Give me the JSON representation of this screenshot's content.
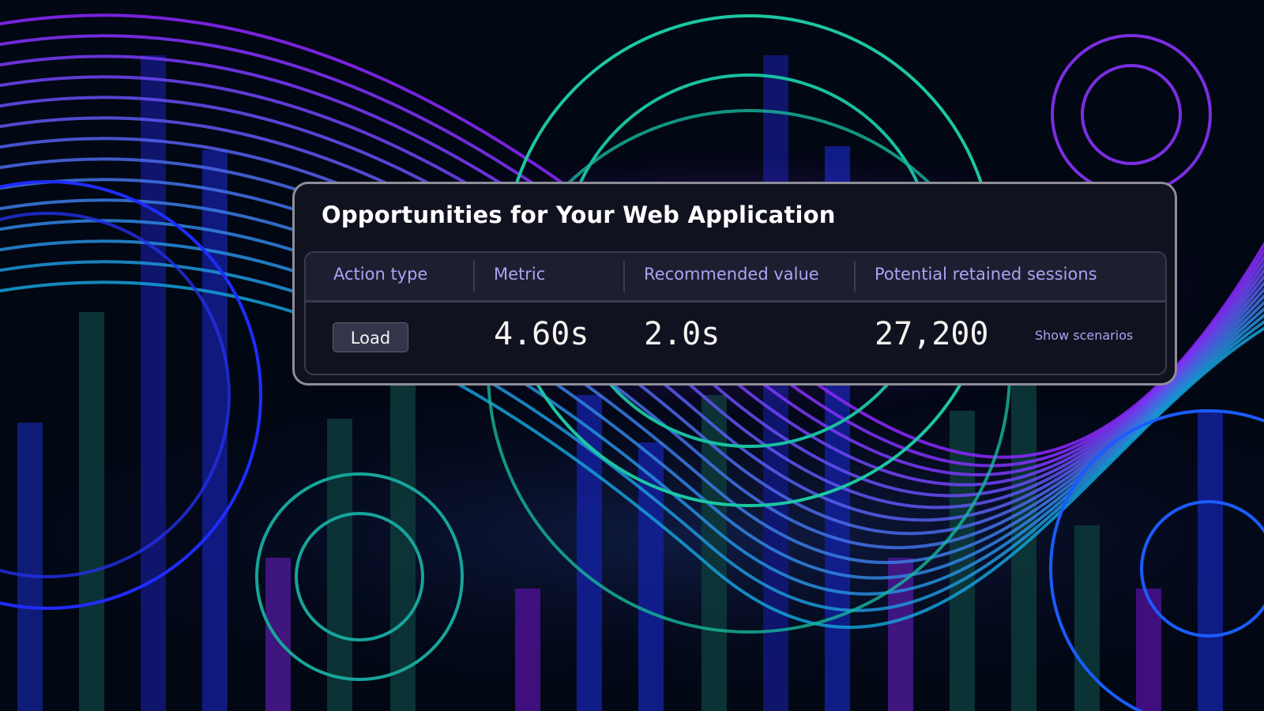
{
  "card": {
    "title": "Opportunities for Your Web Application",
    "columns": [
      "Action type",
      "Metric",
      "Recommended value",
      "Potential retained sessions"
    ],
    "rows": [
      {
        "action_type": "Load",
        "metric": "4.60s",
        "recommended_value": "2.0s",
        "potential_retained_sessions": "27,200",
        "link": "Show scenarios"
      }
    ]
  },
  "colors": {
    "background": "#020714",
    "accent_purple": "#8a2cff",
    "accent_teal": "#17c9a0",
    "accent_blue": "#1f5cff",
    "header_text": "#a9a4f2"
  }
}
